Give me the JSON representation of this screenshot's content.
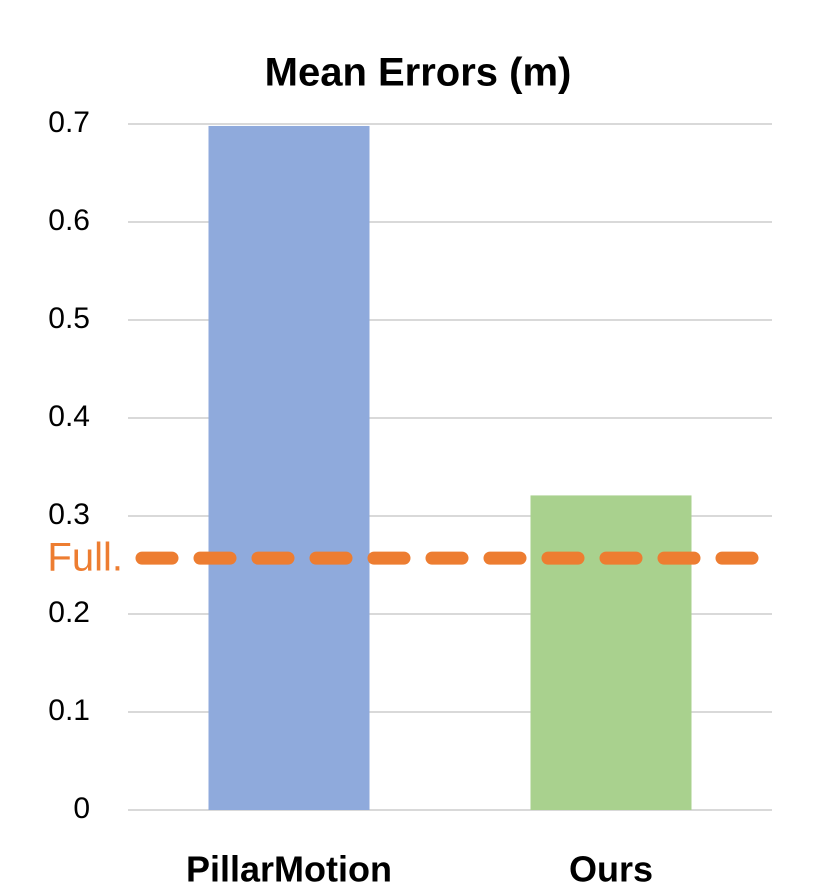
{
  "chart_data": {
    "type": "bar",
    "title": "Mean Errors (m)",
    "categories": [
      "PillarMotion",
      "Ours"
    ],
    "values": [
      0.698,
      0.321
    ],
    "colors": [
      "#8faadc",
      "#a9d18e"
    ],
    "ylim": [
      0,
      0.7
    ],
    "yticks": [
      0,
      0.1,
      0.2,
      0.3,
      0.4,
      0.5,
      0.6,
      0.7
    ],
    "grid": true,
    "reference_line": {
      "label": "Full.",
      "value": 0.257,
      "color": "#ed7d31"
    }
  }
}
